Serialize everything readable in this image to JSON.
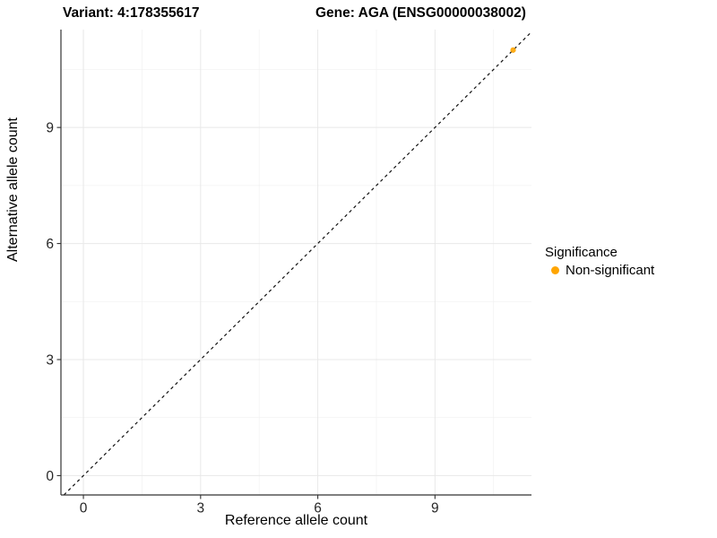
{
  "titles": {
    "variant": "Variant: 4:178355617",
    "gene": "Gene: AGA (ENSG00000038002)"
  },
  "legend": {
    "title": "Significance",
    "items": [
      {
        "label": "Non-significant",
        "color": "#FFA500"
      }
    ]
  },
  "chart_data": {
    "type": "scatter",
    "title": "Variant: 4:178355617  Gene: AGA (ENSG00000038002)",
    "xlabel": "Reference allele count",
    "ylabel": "Alternative allele count",
    "xlim": [
      -0.575,
      11.47
    ],
    "ylim": [
      -0.5,
      11.53
    ],
    "major_ticks": [
      0,
      3,
      6,
      9
    ],
    "minor_ticks": [
      1.5,
      4.5,
      7.5,
      10.5
    ],
    "grid": true,
    "identity_line": {
      "style": "dashed",
      "slope": 1,
      "intercept": 0,
      "color": "#111111"
    },
    "legend_position": "right",
    "series": [
      {
        "name": "Non-significant",
        "color": "#FFA500",
        "points": [
          {
            "x": 11,
            "y": 11
          }
        ]
      }
    ],
    "colors": {
      "grid_major": "#E8E8E8",
      "grid_minor": "#F1F1F1",
      "axis_line": "#333333",
      "tick_mark": "#333333",
      "tick_label": "#262626"
    }
  }
}
